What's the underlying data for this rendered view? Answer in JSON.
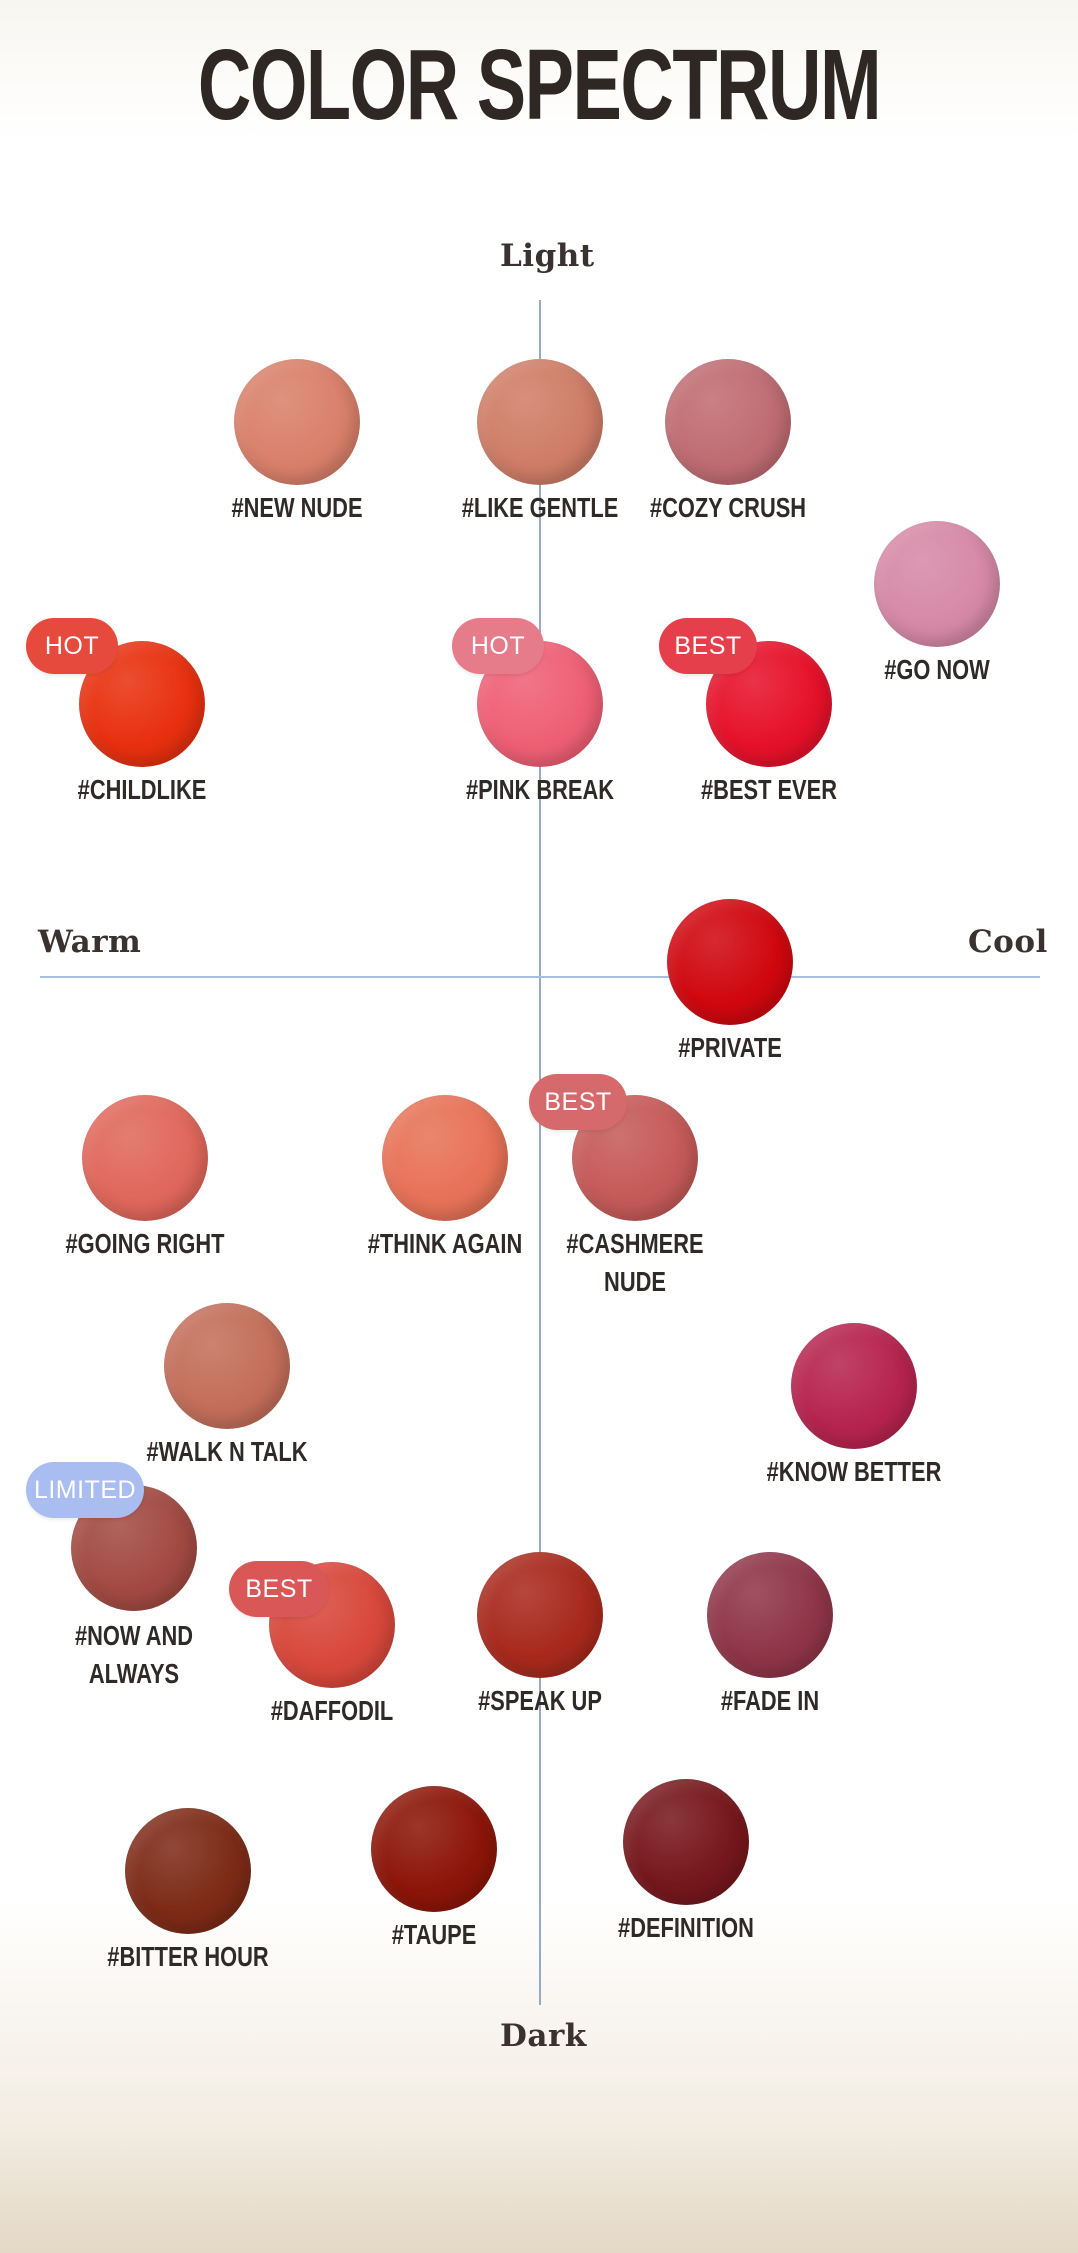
{
  "title": "COLOR SPECTRUM",
  "axes": {
    "top": "Light",
    "bottom": "Dark",
    "left": "Warm",
    "right": "Cool"
  },
  "shades": [
    {
      "name": "#NEW NUDE",
      "color": "#d9806a"
    },
    {
      "name": "#LIKE GENTLE",
      "color": "#cf7d67"
    },
    {
      "name": "#COZY CRUSH",
      "color": "#bf6c72"
    },
    {
      "name": "#GO NOW",
      "color": "#d689a6"
    },
    {
      "name": "#CHILDLIKE",
      "color": "#e8300f",
      "badge": "HOT",
      "badge_color": "#e54a3c"
    },
    {
      "name": "#PINK BREAK",
      "color": "#ef5f74",
      "badge": "HOT",
      "badge_color": "#e67c8a"
    },
    {
      "name": "#BEST EVER",
      "color": "#e6112a",
      "badge": "BEST",
      "badge_color": "#e53f4b"
    },
    {
      "name": "#PRIVATE",
      "color": "#d0070f"
    },
    {
      "name": "#GOING RIGHT",
      "color": "#e0675b"
    },
    {
      "name": "#THINK AGAIN",
      "color": "#e77257"
    },
    {
      "name": "#CASHMERE NUDE",
      "color": "#c55a58",
      "badge": "BEST",
      "badge_color": "#d6696c"
    },
    {
      "name": "#WALK N TALK",
      "color": "#c36e5a"
    },
    {
      "name": "#KNOW BETTER",
      "color": "#b6234f"
    },
    {
      "name": "#NOW AND\nALWAYS",
      "color": "#a24a42",
      "badge": "LIMITED",
      "badge_color": "#a9bdf1"
    },
    {
      "name": "#DAFFODIL",
      "color": "#d8473b",
      "badge": "BEST",
      "badge_color": "#d95857"
    },
    {
      "name": "#SPEAK UP",
      "color": "#a8291c"
    },
    {
      "name": "#FADE IN",
      "color": "#8f3548"
    },
    {
      "name": "#BITTER HOUR",
      "color": "#7d2a17"
    },
    {
      "name": "#TAUPE",
      "color": "#8c1508"
    },
    {
      "name": "#DEFINITION",
      "color": "#76171c"
    }
  ]
}
